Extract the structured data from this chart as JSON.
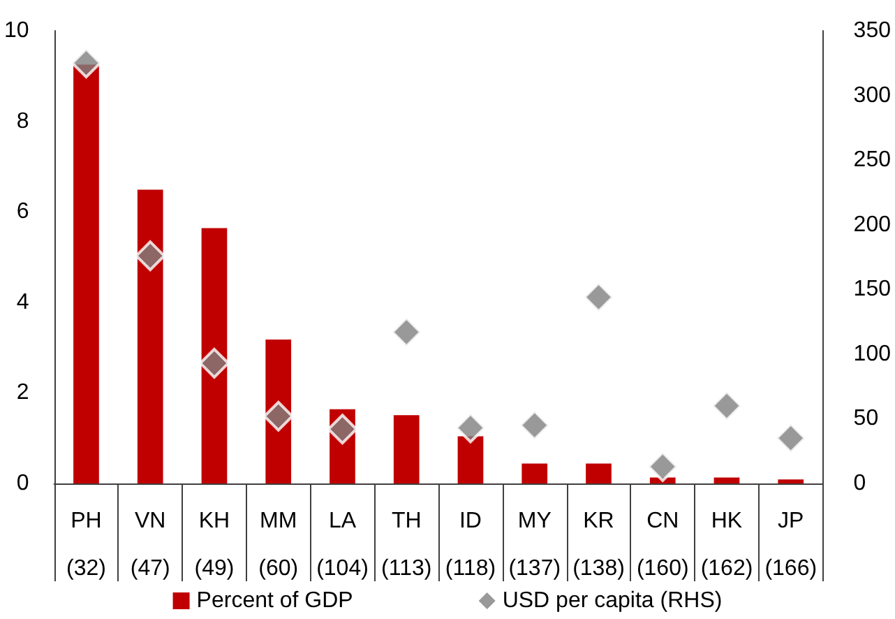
{
  "chart_data": {
    "type": "bar",
    "categories": [
      "PH\n(32)",
      "VN\n(47)",
      "KH\n(49)",
      "MM\n(60)",
      "LA\n(104)",
      "TH\n(113)",
      "ID\n(118)",
      "MY\n(137)",
      "KR\n(138)",
      "CN\n(160)",
      "HK\n(162)",
      "JP\n(166)"
    ],
    "series": [
      {
        "name": "Percent of GDP",
        "color": "#c00000",
        "values": [
          9.25,
          6.49,
          5.64,
          3.18,
          1.64,
          1.51,
          1.04,
          0.44,
          0.44,
          0.13,
          0.13,
          0.09
        ]
      },
      {
        "name": "USD per capita (RHS)",
        "type": "scatter",
        "axis": "y2",
        "marker": "diamond",
        "color": "#7f7f7f",
        "values": [
          325,
          176,
          93,
          52,
          42,
          117,
          43,
          45,
          144,
          13,
          60,
          35
        ]
      }
    ],
    "ylim": [
      0,
      10
    ],
    "yticks": [
      0,
      2,
      4,
      6,
      8,
      10
    ],
    "y2lim": [
      0,
      350
    ],
    "y2ticks": [
      0,
      50,
      100,
      150,
      200,
      250,
      300,
      350
    ],
    "grid": false,
    "legend": "bottom"
  }
}
